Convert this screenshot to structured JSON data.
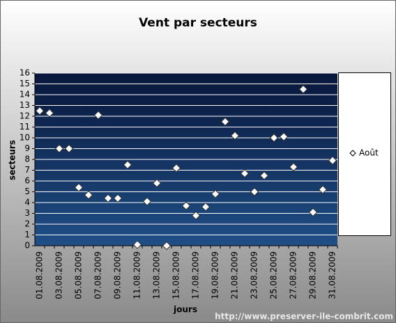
{
  "chart_data": {
    "type": "scatter",
    "title": "Vent par secteurs",
    "ylabel": "secteurs",
    "xlabel": "jours",
    "footer": "http://www.preserver-ile-combrit.com",
    "categories": [
      "01.08.2009",
      null,
      "03.08.2009",
      null,
      "05.08.2009",
      null,
      "07.08.2009",
      null,
      "09.08.2009",
      null,
      "11.08.2009",
      null,
      "13.08.2009",
      null,
      "15.08.2009",
      null,
      "17.08.2009",
      null,
      "19.08.2009",
      null,
      "21.08.2009",
      null,
      "23.08.2009",
      null,
      "25.08.2009",
      null,
      "27.08.2009",
      null,
      "29.08.2009",
      null,
      "31.08.2009"
    ],
    "series": [
      {
        "name": "Août",
        "color": "#ffffff",
        "values": [
          12.5,
          12.3,
          9.0,
          9.0,
          5.4,
          4.7,
          12.1,
          4.4,
          4.4,
          7.5,
          0.1,
          4.1,
          5.8,
          0,
          7.2,
          3.7,
          2.8,
          3.6,
          4.8,
          11.5,
          10.2,
          6.7,
          5.0,
          6.5,
          10.0,
          10.1,
          7.3,
          14.5,
          3.1,
          5.2,
          7.9
        ]
      }
    ],
    "ylim": [
      0,
      16
    ],
    "yticks": [
      0,
      1,
      2,
      3,
      4,
      5,
      6,
      7,
      8,
      9,
      10,
      11,
      12,
      13,
      14,
      15,
      16
    ],
    "grid": true
  }
}
